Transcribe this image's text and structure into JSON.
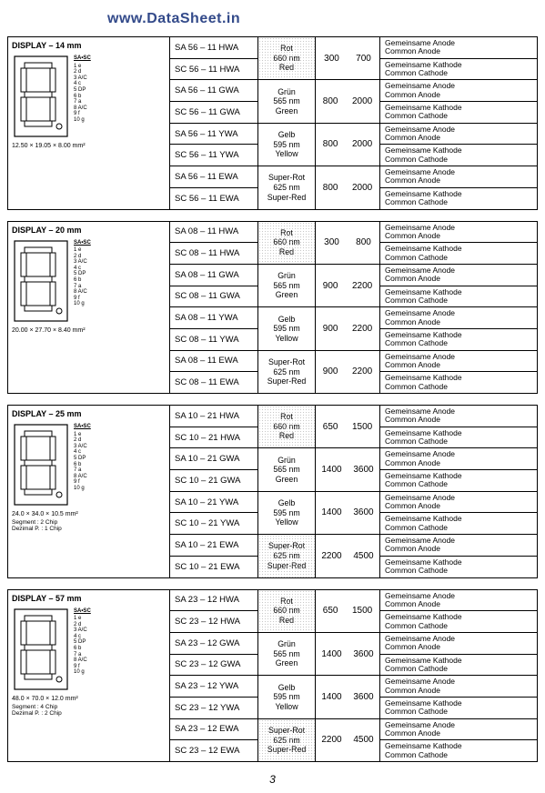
{
  "watermark": "www.DataSheet.in",
  "page_number": "3",
  "colors": {
    "watermark": "#334a8a",
    "border": "#000000",
    "shade": "#999999",
    "background": "#ffffff"
  },
  "sections": [
    {
      "title": "DISPLAY – 14 mm",
      "dim_note": "12.50 × 19.05 × 8.00 mm²",
      "dim_w": "12.50",
      "dim_b": "7.80",
      "dim_h": "19.05",
      "dim_ih": "13.80",
      "rows": [
        {
          "pn": [
            "SA 56 – 11 HWA",
            "SC 56 – 11 HWA"
          ],
          "color": [
            "Rot",
            "660 nm",
            "Red"
          ],
          "shaded": true,
          "nums": [
            "300",
            "700"
          ],
          "conn": [
            [
              "Gemeinsame Anode",
              "Common Anode"
            ],
            [
              "Gemeinsame Kathode",
              "Common Cathode"
            ]
          ]
        },
        {
          "pn": [
            "SA 56 – 11 GWA",
            "SC 56 – 11 GWA"
          ],
          "color": [
            "Grün",
            "565 nm",
            "Green"
          ],
          "shaded": false,
          "nums": [
            "800",
            "2000"
          ],
          "conn": [
            [
              "Gemeinsame Anode",
              "Common Anode"
            ],
            [
              "Gemeinsame Kathode",
              "Common Cathode"
            ]
          ]
        },
        {
          "pn": [
            "SA 56 – 11 YWA",
            "SC 56 – 11 YWA"
          ],
          "color": [
            "Gelb",
            "595 nm",
            "Yellow"
          ],
          "shaded": false,
          "nums": [
            "800",
            "2000"
          ],
          "conn": [
            [
              "Gemeinsame Anode",
              "Common Anode"
            ],
            [
              "Gemeinsame Kathode",
              "Common Cathode"
            ]
          ]
        },
        {
          "pn": [
            "SA 56 – 11 EWA",
            "SC 56 – 11 EWA"
          ],
          "color": [
            "Super-Rot",
            "625 nm",
            "Super-Red"
          ],
          "shaded": false,
          "nums": [
            "800",
            "2000"
          ],
          "conn": [
            [
              "Gemeinsame Anode",
              "Common Anode"
            ],
            [
              "Gemeinsame Kathode",
              "Common Cathode"
            ]
          ]
        }
      ]
    },
    {
      "title": "DISPLAY – 20 mm",
      "dim_note": "20.00 × 27.70 × 8.40 mm²",
      "dim_w": "20.00",
      "dim_b": "15.24",
      "dim_h": "27.70",
      "dim_ih": "20.70",
      "rows": [
        {
          "pn": [
            "SA 08 – 11 HWA",
            "SC 08 – 11 HWA"
          ],
          "color": [
            "Rot",
            "660 nm",
            "Red"
          ],
          "shaded": true,
          "nums": [
            "300",
            "800"
          ],
          "conn": [
            [
              "Gemeinsame Anode",
              "Common Anode"
            ],
            [
              "Gemeinsame Kathode",
              "Common Cathode"
            ]
          ]
        },
        {
          "pn": [
            "SA 08 – 11 GWA",
            "SC 08 – 11 GWA"
          ],
          "color": [
            "Grün",
            "565 nm",
            "Green"
          ],
          "shaded": false,
          "nums": [
            "900",
            "2200"
          ],
          "conn": [
            [
              "Gemeinsame Anode",
              "Common Anode"
            ],
            [
              "Gemeinsame Kathode",
              "Common Cathode"
            ]
          ]
        },
        {
          "pn": [
            "SA 08 – 11 YWA",
            "SC 08 – 11 YWA"
          ],
          "color": [
            "Gelb",
            "595 nm",
            "Yellow"
          ],
          "shaded": false,
          "nums": [
            "900",
            "2200"
          ],
          "conn": [
            [
              "Gemeinsame Anode",
              "Common Anode"
            ],
            [
              "Gemeinsame Kathode",
              "Common Cathode"
            ]
          ]
        },
        {
          "pn": [
            "SA 08 – 11 EWA",
            "SC 08 – 11 EWA"
          ],
          "color": [
            "Super-Rot",
            "625 nm",
            "Super-Red"
          ],
          "shaded": false,
          "nums": [
            "900",
            "2200"
          ],
          "conn": [
            [
              "Gemeinsame Anode",
              "Common Anode"
            ],
            [
              "Gemeinsame Kathode",
              "Common Cathode"
            ]
          ]
        }
      ]
    },
    {
      "title": "DISPLAY – 25 mm",
      "dim_note": "24.0 × 34.0 × 10.5 mm²",
      "dim_w": "24.0",
      "dim_b": "",
      "dim_h": "34.0",
      "dim_ih": "25.50",
      "seg_note": "Segment : 2 Chip\nDezimal P. : 1 Chip",
      "rows": [
        {
          "pn": [
            "SA 10 – 21 HWA",
            "SC 10 – 21 HWA"
          ],
          "color": [
            "Rot",
            "660 nm",
            "Red"
          ],
          "shaded": true,
          "nums": [
            "650",
            "1500"
          ],
          "conn": [
            [
              "Gemeinsame Anode",
              "Common Anode"
            ],
            [
              "Gemeinsame Kathode",
              "Common Cathode"
            ]
          ]
        },
        {
          "pn": [
            "SA 10 – 21 GWA",
            "SC 10 – 21 GWA"
          ],
          "color": [
            "Grün",
            "565 nm",
            "Green"
          ],
          "shaded": false,
          "nums": [
            "1400",
            "3600"
          ],
          "conn": [
            [
              "Gemeinsame Anode",
              "Common Anode"
            ],
            [
              "Gemeinsame Kathode",
              "Common Cathode"
            ]
          ]
        },
        {
          "pn": [
            "SA 10 – 21 YWA",
            "SC 10 – 21 YWA"
          ],
          "color": [
            "Gelb",
            "595 nm",
            "Yellow"
          ],
          "shaded": false,
          "nums": [
            "1400",
            "3600"
          ],
          "conn": [
            [
              "Gemeinsame Anode",
              "Common Anode"
            ],
            [
              "Gemeinsame Kathode",
              "Common Cathode"
            ]
          ]
        },
        {
          "pn": [
            "SA 10 – 21 EWA",
            "SC 10 – 21 EWA"
          ],
          "color": [
            "Super-Rot",
            "625 nm",
            "Super-Red"
          ],
          "shaded": true,
          "nums": [
            "2200",
            "4500"
          ],
          "conn": [
            [
              "Gemeinsame Anode",
              "Common Anode"
            ],
            [
              "Gemeinsame Kathode",
              "Common Cathode"
            ]
          ]
        }
      ]
    },
    {
      "title": "DISPLAY – 57 mm",
      "dim_note": "48.0 × 70.0 × 12.0 mm²",
      "dim_w": "48.0",
      "dim_b": "",
      "dim_h": "70.0",
      "dim_ih": "60.0",
      "seg_note": "Segment : 4 Chip\nDezimal P. : 2 Chip",
      "rows": [
        {
          "pn": [
            "SA 23 – 12 HWA",
            "SC 23 – 12 HWA"
          ],
          "color": [
            "Rot",
            "660 nm",
            "Red"
          ],
          "shaded": true,
          "nums": [
            "650",
            "1500"
          ],
          "conn": [
            [
              "Gemeinsame Anode",
              "Common Anode"
            ],
            [
              "Gemeinsame Kathode",
              "Common Cathode"
            ]
          ]
        },
        {
          "pn": [
            "SA 23 – 12 GWA",
            "SC 23 – 12 GWA"
          ],
          "color": [
            "Grün",
            "565 nm",
            "Green"
          ],
          "shaded": false,
          "nums": [
            "1400",
            "3600"
          ],
          "conn": [
            [
              "Gemeinsame Anode",
              "Common Anode"
            ],
            [
              "Gemeinsame Kathode",
              "Common Cathode"
            ]
          ]
        },
        {
          "pn": [
            "SA 23 – 12 YWA",
            "SC 23 – 12 YWA"
          ],
          "color": [
            "Gelb",
            "595 nm",
            "Yellow"
          ],
          "shaded": false,
          "nums": [
            "1400",
            "3600"
          ],
          "conn": [
            [
              "Gemeinsame Anode",
              "Common Anode"
            ],
            [
              "Gemeinsame Kathode",
              "Common Cathode"
            ]
          ]
        },
        {
          "pn": [
            "SA 23 – 12 EWA",
            "SC 23 – 12 EWA"
          ],
          "color": [
            "Super-Rot",
            "625 nm",
            "Super-Red"
          ],
          "shaded": true,
          "nums": [
            "2200",
            "4500"
          ],
          "conn": [
            [
              "Gemeinsame Anode",
              "Common Anode"
            ],
            [
              "Gemeinsame Kathode",
              "Common Cathode"
            ]
          ]
        }
      ]
    }
  ]
}
